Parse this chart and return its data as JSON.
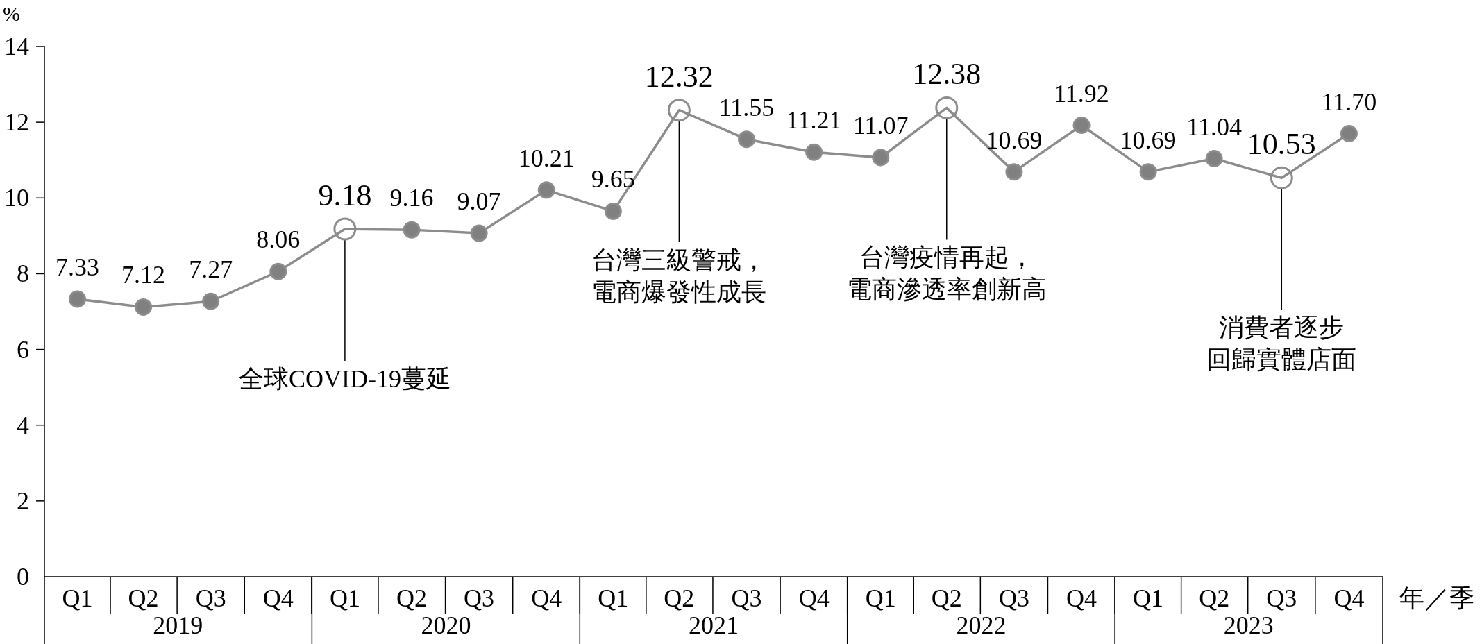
{
  "chart_data": {
    "type": "line",
    "xlabel": "年／季",
    "ylabel": "%",
    "x": [
      "2019-02-15",
      "2019-05-16",
      "2019-08-16",
      "2019-11-16",
      "2020-02-15",
      "2020-05-16",
      "2020-08-16",
      "2020-11-16",
      "2021-02-15",
      "2021-05-16",
      "2021-08-16",
      "2021-11-16",
      "2022-02-15",
      "2022-05-16",
      "2022-08-16",
      "2022-11-16",
      "2023-02-15",
      "2023-05-16",
      "2023-08-16",
      "2023-11-16"
    ],
    "series": [
      {
        "type": "scatter",
        "color": "#ffffff",
        "x": [
          "2020-02-15",
          "2021-05-16",
          "2022-05-16",
          "2023-08-16"
        ],
        "values": [
          9.18,
          12.32,
          12.38,
          10.53
        ],
        "value_labels": [
          "9.18",
          "12.32",
          "12.38",
          "10.53"
        ]
      },
      {
        "color": "#8c8c8c",
        "marker": "none",
        "values": [
          7.33,
          7.12,
          7.27,
          8.06,
          9.18,
          9.16,
          9.07,
          10.21,
          9.65,
          12.32,
          11.55,
          11.21,
          11.07,
          12.38,
          10.69,
          11.92,
          10.69,
          11.04,
          10.53,
          11.7
        ]
      },
      {
        "type": "scatter",
        "color": "#808080",
        "x": [
          "2019-02-15",
          "2019-05-16",
          "2019-08-16",
          "2019-11-16",
          "2020-05-16",
          "2020-08-16",
          "2020-11-16",
          "2021-02-15",
          "2021-08-16",
          "2021-11-16",
          "2022-02-15",
          "2022-08-16",
          "2022-11-16",
          "2023-02-15",
          "2023-05-16",
          "2023-11-16"
        ],
        "values": [
          7.33,
          7.12,
          7.27,
          8.06,
          9.16,
          9.07,
          10.21,
          9.65,
          11.55,
          11.21,
          11.07,
          10.69,
          11.92,
          10.69,
          11.04,
          11.7
        ],
        "value_labels": [
          "7.33",
          "7.12",
          "7.27",
          "8.06",
          "9.16",
          "9.07",
          "10.21",
          "9.65",
          "11.55",
          "11.21",
          "11.07",
          "10.69",
          "11.92",
          "10.69",
          "11.04",
          "11.70"
        ]
      }
    ],
    "marker": "circle",
    "xlim": [
      "2019-01-01",
      "2024-01-01"
    ],
    "xticks": [
      {
        "value": "2019-02-15",
        "label": "Q1"
      },
      {
        "value": "2019-05-16",
        "label": "Q2"
      },
      {
        "value": "2019-08-16",
        "label": "Q3"
      },
      {
        "value": "2019-11-16",
        "label": "Q4"
      },
      {
        "value": "2020-02-15",
        "label": "Q1"
      },
      {
        "value": "2020-05-16",
        "label": "Q2"
      },
      {
        "value": "2020-08-16",
        "label": "Q3"
      },
      {
        "value": "2020-11-16",
        "label": "Q4"
      },
      {
        "value": "2021-02-15",
        "label": "Q1"
      },
      {
        "value": "2021-05-16",
        "label": "Q2"
      },
      {
        "value": "2021-08-16",
        "label": "Q3"
      },
      {
        "value": "2021-11-16",
        "label": "Q4"
      },
      {
        "value": "2022-02-15",
        "label": "Q1"
      },
      {
        "value": "2022-05-16",
        "label": "Q2"
      },
      {
        "value": "2022-08-16",
        "label": "Q3"
      },
      {
        "value": "2022-11-16",
        "label": "Q4"
      },
      {
        "value": "2023-02-15",
        "label": "Q1"
      },
      {
        "value": "2023-05-16",
        "label": "Q2"
      },
      {
        "value": "2023-08-16",
        "label": "Q3"
      },
      {
        "value": "2023-11-16",
        "label": "Q4"
      }
    ],
    "x2lim": [
      "2019-01-01",
      "2024-01-01"
    ],
    "x2ticks": [
      {
        "value": "2019-07-02",
        "label": "2019"
      },
      {
        "value": "2020-07-02",
        "label": "2020"
      },
      {
        "value": "2021-07-02",
        "label": "2021"
      },
      {
        "value": "2022-07-02",
        "label": "2022"
      },
      {
        "value": "2023-07-02",
        "label": "2023"
      }
    ],
    "ylim": [
      0,
      14
    ],
    "yticks": [
      0,
      2,
      4,
      6,
      8,
      10,
      12,
      14
    ],
    "annotations": [
      {
        "text": "全球COVID-19蔓延",
        "x": "2020-02-15",
        "y": 9.18
      },
      {
        "text": "台灣三級警戒，電商爆發性成長",
        "x": "2021-05-16",
        "y": 12.32
      },
      {
        "text": "台灣疫情再起，電商滲透率創新高",
        "x": "2022-05-16",
        "y": 12.38
      },
      {
        "text": "消費者逐步回歸實體店面",
        "x": "2023-08-16",
        "y": 10.53
      }
    ]
  }
}
